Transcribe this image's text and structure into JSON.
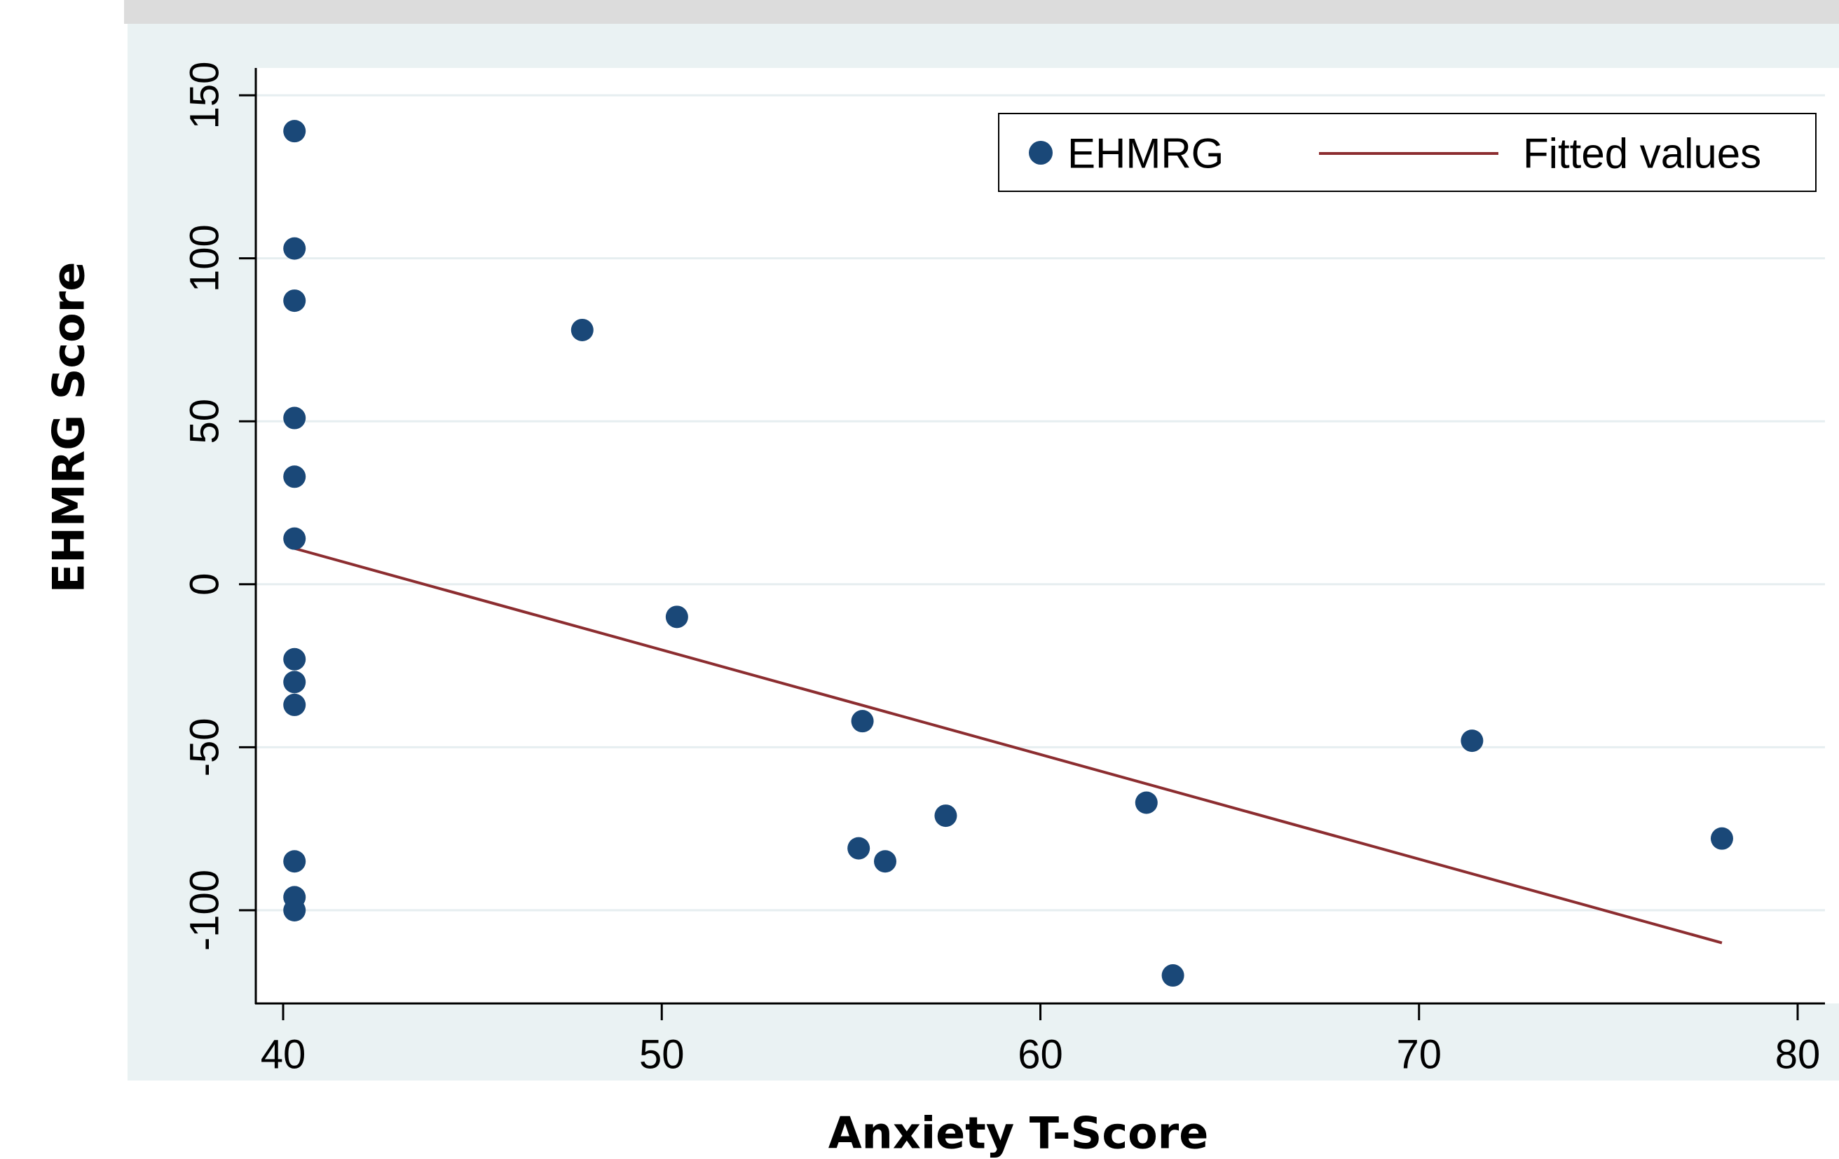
{
  "chart_data": {
    "type": "scatter",
    "xlabel": "Anxiety T-Score",
    "ylabel": "EHMRG Score",
    "xlim": [
      39.3,
      80.7
    ],
    "ylim": [
      -128,
      158
    ],
    "x_ticks": [
      40,
      50,
      60,
      70,
      80
    ],
    "y_ticks": [
      -100,
      -50,
      0,
      50,
      100,
      150
    ],
    "x_tick_labels": [
      "40",
      "50",
      "60",
      "70",
      "80"
    ],
    "y_tick_labels": [
      "-100",
      "-50",
      "0",
      "50",
      "100",
      "150"
    ],
    "grid": "horizontal",
    "legend_position": "top-right",
    "legend": [
      "EHMRG",
      "Fitted values"
    ],
    "series": [
      {
        "name": "EHMRG",
        "kind": "scatter",
        "color": "#1a4878",
        "points": [
          [
            40.3,
            139
          ],
          [
            40.3,
            103
          ],
          [
            40.3,
            87
          ],
          [
            40.3,
            51
          ],
          [
            40.3,
            33
          ],
          [
            40.3,
            14
          ],
          [
            40.3,
            -23
          ],
          [
            40.3,
            -30
          ],
          [
            40.3,
            -37
          ],
          [
            40.3,
            -85
          ],
          [
            40.3,
            -96
          ],
          [
            40.3,
            -100
          ],
          [
            47.9,
            78
          ],
          [
            50.4,
            -10
          ],
          [
            55.2,
            -81
          ],
          [
            55.3,
            -42
          ],
          [
            55.9,
            -85
          ],
          [
            57.5,
            -71
          ],
          [
            62.8,
            -67
          ],
          [
            63.5,
            -120
          ],
          [
            71.4,
            -48
          ],
          [
            78.0,
            -78
          ]
        ]
      },
      {
        "name": "Fitted values",
        "kind": "line",
        "color": "#8c2d30",
        "points": [
          [
            40.3,
            11
          ],
          [
            78.0,
            -110
          ]
        ]
      }
    ]
  }
}
